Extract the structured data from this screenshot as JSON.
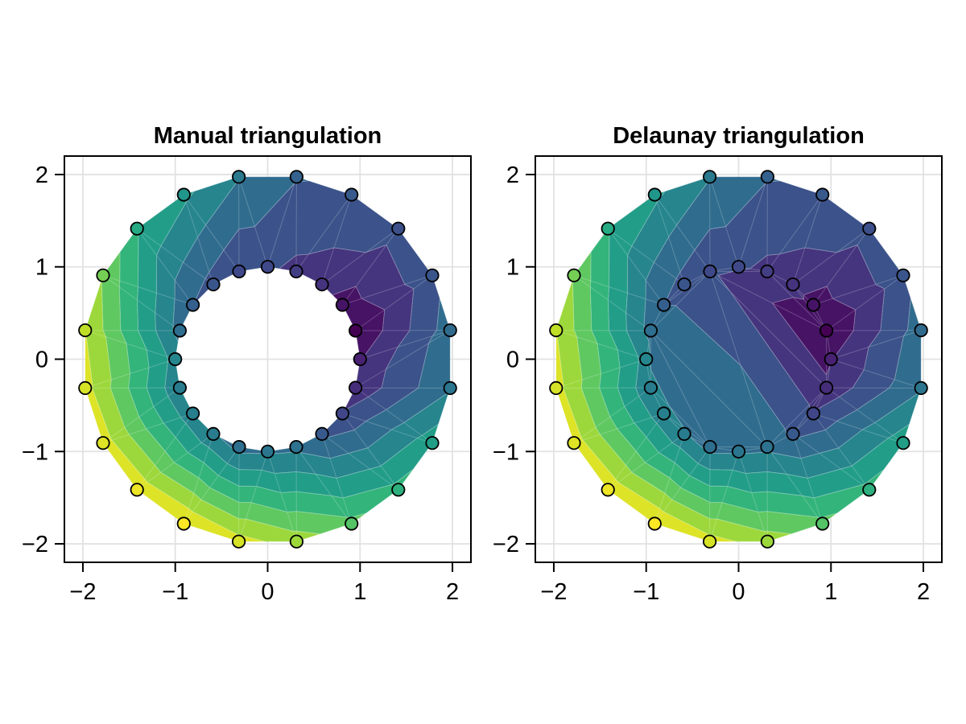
{
  "figure": {
    "background": "#ffffff"
  },
  "panels": [
    {
      "title": "Manual triangulation",
      "triangulation": "manual"
    },
    {
      "title": "Delaunay triangulation",
      "triangulation": "delaunay"
    }
  ],
  "chart_data": {
    "type": "tricontourf+scatter",
    "description": "Filled triangular contours of z over 40 points on two concentric circles (inner r=1, outer r=2, 20 points each); scatter points colored by z with black stroke. Left: manual annulus triangulation (hole empty). Right: Delaunay triangulation (hole filled).",
    "n_points_per_circle": 20,
    "inner_radius": 1,
    "outer_radius": 2,
    "points": {
      "x": [
        1.0,
        0.951,
        0.809,
        0.588,
        0.309,
        0.0,
        -0.309,
        -0.588,
        -0.809,
        -0.951,
        -1.0,
        -0.951,
        -0.809,
        -0.588,
        -0.309,
        0.0,
        0.309,
        0.588,
        0.809,
        0.951,
        1.975,
        1.782,
        1.414,
        0.908,
        0.313,
        -0.313,
        -0.908,
        -1.414,
        -1.782,
        -1.975,
        -1.975,
        -1.782,
        -1.414,
        -0.908,
        -0.313,
        0.313,
        0.908,
        1.414,
        1.782,
        1.975
      ],
      "y": [
        0.0,
        0.309,
        0.588,
        0.809,
        0.951,
        1.0,
        0.951,
        0.809,
        0.588,
        0.309,
        0.0,
        -0.309,
        -0.588,
        -0.809,
        -0.951,
        -1.0,
        -0.951,
        -0.809,
        -0.588,
        -0.309,
        0.313,
        0.908,
        1.414,
        1.782,
        1.975,
        1.975,
        1.782,
        1.414,
        0.908,
        0.313,
        -0.313,
        -0.908,
        -1.414,
        -1.782,
        -1.975,
        -1.975,
        -1.782,
        -1.414,
        -0.908,
        -0.313
      ],
      "z": [
        0.3,
        -0.45,
        0.0,
        0.75,
        1.0,
        1.3,
        1.3,
        1.7,
        2.0,
        2.5,
        3.3,
        2.95,
        3.05,
        2.9,
        2.5,
        2.7,
        2.6,
        1.8,
        1.25,
        0.6,
        2.4,
        1.7,
        1.5,
        1.8,
        2.05,
        2.85,
        3.8,
        4.5,
        6.0,
        6.9,
        7.2,
        7.3,
        7.5,
        7.7,
        7.2,
        6.5,
        5.5,
        4.7,
        4.1,
        2.7
      ]
    },
    "z_min": -0.45,
    "z_max": 7.7,
    "levels": 10,
    "axes": {
      "xlim": [
        -2.2,
        2.2
      ],
      "ylim": [
        -2.2,
        2.2
      ],
      "x_tick_values": [
        -2,
        -1,
        0,
        1,
        2
      ],
      "x_tick_labels": [
        "−2",
        "−1",
        "0",
        "1",
        "2"
      ],
      "y_tick_values": [
        -2,
        -1,
        0,
        1,
        2
      ],
      "y_tick_labels": [
        "−2",
        "−1",
        "0",
        "1",
        "2"
      ],
      "grid": true
    },
    "colormap": {
      "name": "viridis",
      "stops": [
        "#440154",
        "#482475",
        "#414487",
        "#355f8d",
        "#2a788e",
        "#21918c",
        "#22a884",
        "#44bf70",
        "#7ad151",
        "#bddf26",
        "#fde725"
      ]
    },
    "marker": {
      "shape": "circle",
      "stroke_color": "#000000",
      "stroke_width": 1.8,
      "radius_px": 7.7
    }
  },
  "style": {
    "grid_color": "#e2e2e2",
    "spine_color": "#000000",
    "tick_label_color": "#000000",
    "title_color": "#000000",
    "band_seam_color": "rgba(255,255,255,0.22)"
  }
}
